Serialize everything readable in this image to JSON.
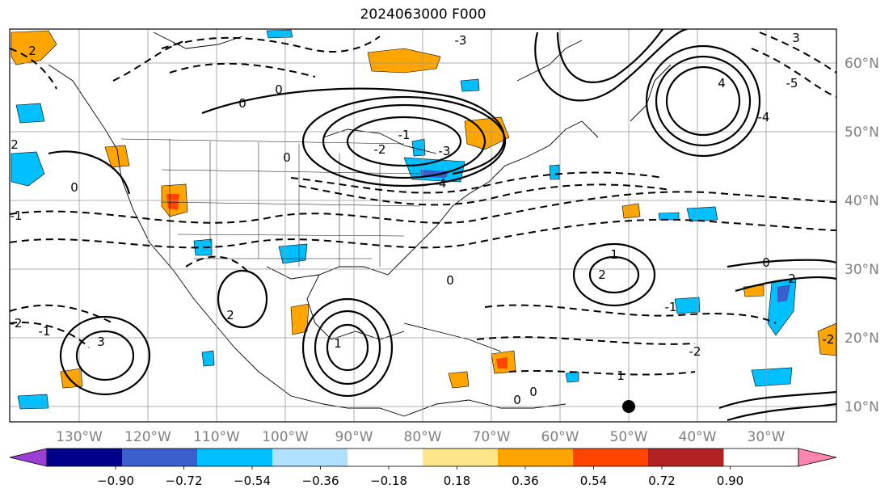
{
  "title": "2024063000 F000",
  "lon_labels": [
    "130°W",
    "120°W",
    "110°W",
    "100°W",
    "90°W",
    "80°W",
    "70°W",
    "60°W",
    "50°W",
    "40°W",
    "30°W"
  ],
  "lat_labels": [
    "60°N",
    "50°N",
    "40°N",
    "30°N",
    "20°N",
    "10°N"
  ],
  "colorbar": {
    "ticks": [
      "−0.90",
      "−0.72",
      "−0.54",
      "−0.36",
      "−0.18",
      "0.18",
      "0.36",
      "0.54",
      "0.72",
      "0.90"
    ],
    "colors": [
      "#9a3fd6",
      "#00008b",
      "#3a5fcd",
      "#00bfff",
      "#b0e0ff",
      "#ffffff",
      "#fde68a",
      "#ffa500",
      "#ff4500",
      "#b22222",
      "#ff85b0"
    ]
  },
  "contour_labels": [
    "2",
    "3",
    "2",
    "0",
    "0",
    "0",
    "0",
    "-1",
    "-2",
    "-3",
    "-4",
    "-5",
    "-4",
    "-3",
    "0",
    "-1",
    "-2",
    "-2",
    "-1",
    "1",
    "2",
    "0",
    "0",
    "1",
    "0",
    "1",
    "2",
    "3",
    "2",
    "-1",
    "-2",
    "4"
  ]
}
